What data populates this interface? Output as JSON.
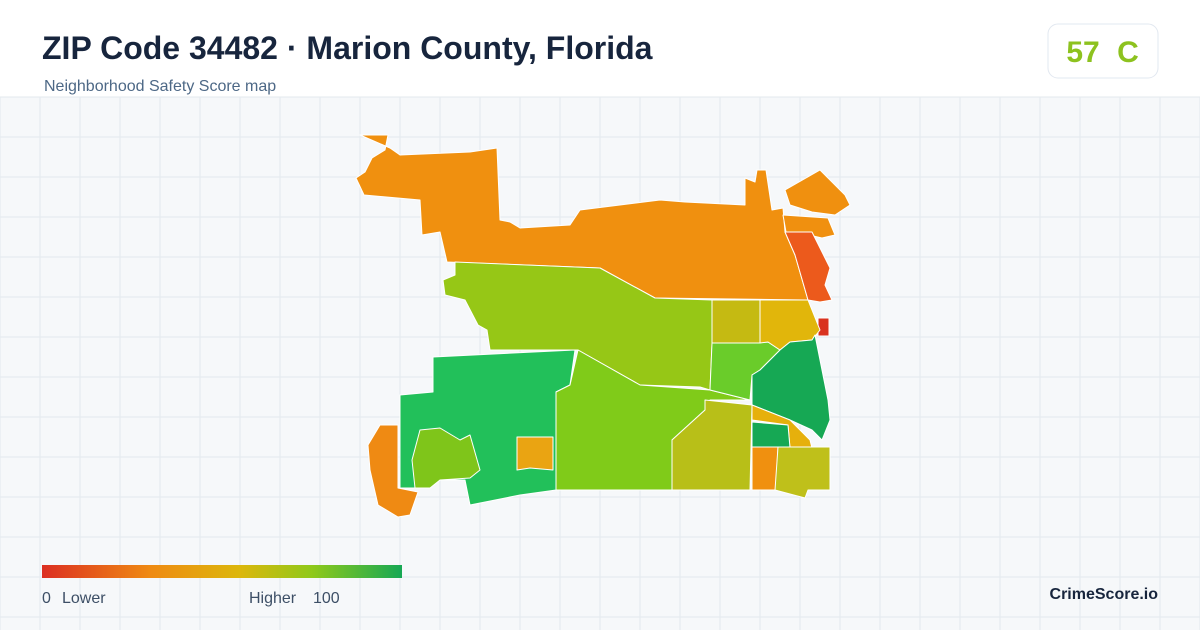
{
  "header": {
    "title": "ZIP Code 34482 · Marion County, Florida",
    "subtitle": "Neighborhood Safety Score map"
  },
  "score": {
    "value": "57",
    "grade": "C"
  },
  "legend": {
    "min": "0",
    "min_label": "Lower",
    "max_label": "Higher",
    "max": "100"
  },
  "brand": "CrimeScore.io"
}
